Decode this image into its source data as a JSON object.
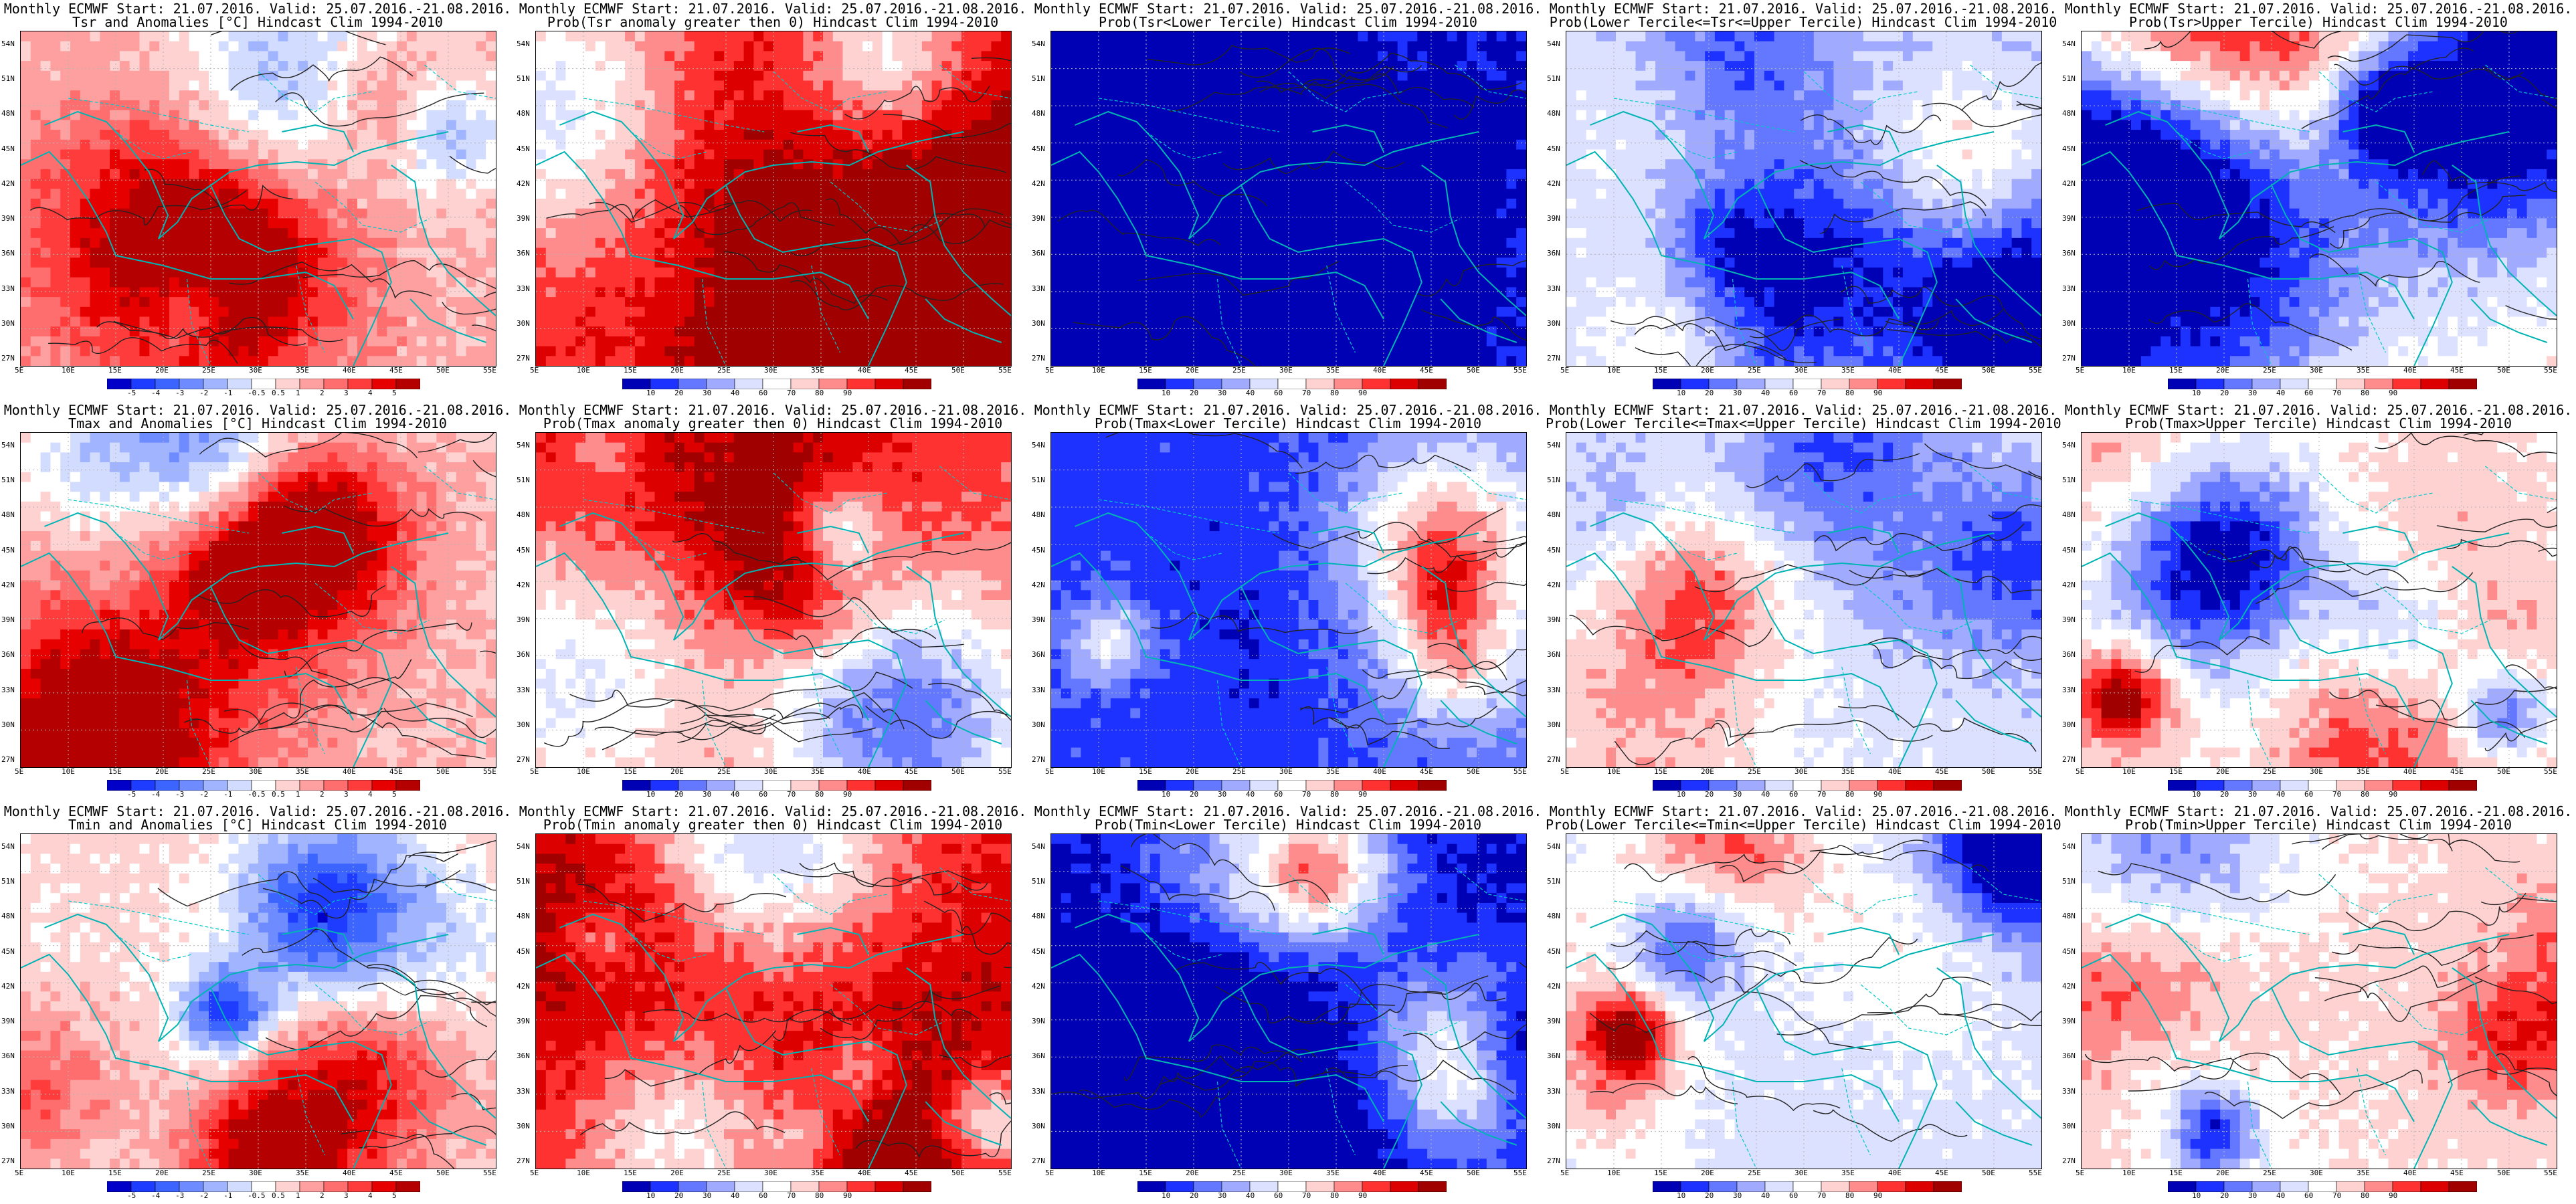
{
  "header_line": "Monthly ECMWF Start: 21.07.2016. Valid: 25.07.2016.-21.08.2016.",
  "lat_labels": [
    "54N",
    "51N",
    "48N",
    "45N",
    "42N",
    "39N",
    "36N",
    "33N",
    "30N",
    "27N"
  ],
  "lon_labels": [
    "5E",
    "10E",
    "15E",
    "20E",
    "25E",
    "30E",
    "35E",
    "40E",
    "45E",
    "50E",
    "55E"
  ],
  "colorbars": {
    "anomaly": {
      "labels": [
        "-5",
        "-4",
        "-3",
        "-2",
        "-1",
        "-0.5",
        "0.5",
        "1",
        "2",
        "3",
        "4",
        "5"
      ],
      "colors": [
        "#0000c8",
        "#1e3cff",
        "#3c64ff",
        "#6e8cff",
        "#a0b4ff",
        "#d2dcff",
        "#ffffff",
        "#ffd2d2",
        "#ffa0a0",
        "#ff6e6e",
        "#ff3c3c",
        "#e60000",
        "#b40000"
      ]
    },
    "probability": {
      "labels": [
        "10",
        "20",
        "30",
        "40",
        "60",
        "70",
        "80",
        "90"
      ],
      "colors": [
        "#0000b4",
        "#1e32ff",
        "#6478ff",
        "#a0aaff",
        "#dce1ff",
        "#ffffff",
        "#ffd2d2",
        "#ff8c8c",
        "#ff3232",
        "#dc0000",
        "#a00000"
      ]
    }
  },
  "panels": [
    {
      "title": "Tsr and Anomalies [°C] Hindcast Clim 1994-2010",
      "kind": "anomaly",
      "base": 0.25,
      "seed": 11
    },
    {
      "title": "Prob(Tsr anomaly greater then 0) Hindcast Clim 1994-2010",
      "kind": "probability",
      "base": 0.65,
      "seed": 12
    },
    {
      "title": "Prob(Tsr<Lower Tercile) Hindcast Clim 1994-2010",
      "kind": "probability",
      "base": -0.85,
      "seed": 13
    },
    {
      "title": "Prob(Lower Tercile<=Tsr<=Upper Tercile) Hindcast Clim 1994-2010",
      "kind": "probability",
      "base": -0.25,
      "seed": 14
    },
    {
      "title": "Prob(Tsr>Upper Tercile) Hindcast Clim 1994-2010",
      "kind": "probability",
      "base": 0.1,
      "seed": 15
    },
    {
      "title": "Tmax and Anomalies [°C] Hindcast Clim 1994-2010",
      "kind": "anomaly",
      "base": 0.2,
      "seed": 21
    },
    {
      "title": "Prob(Tmax anomaly greater then 0) Hindcast Clim 1994-2010",
      "kind": "probability",
      "base": 0.55,
      "seed": 22
    },
    {
      "title": "Prob(Tmax<Lower Tercile) Hindcast Clim 1994-2010",
      "kind": "probability",
      "base": -0.75,
      "seed": 23
    },
    {
      "title": "Prob(Lower Tercile<=Tmax<=Upper Tercile) Hindcast Clim 1994-2010",
      "kind": "probability",
      "base": -0.2,
      "seed": 24
    },
    {
      "title": "Prob(Tmax>Upper Tercile) Hindcast Clim 1994-2010",
      "kind": "probability",
      "base": 0.1,
      "seed": 25
    },
    {
      "title": "Tmin and Anomalies [°C] Hindcast Clim 1994-2010",
      "kind": "anomaly",
      "base": 0.15,
      "seed": 31
    },
    {
      "title": "Prob(Tmin anomaly greater then 0) Hindcast Clim 1994-2010",
      "kind": "probability",
      "base": 0.75,
      "seed": 32
    },
    {
      "title": "Prob(Tmin<Lower Tercile) Hindcast Clim 1994-2010",
      "kind": "probability",
      "base": -0.9,
      "seed": 33
    },
    {
      "title": "Prob(Lower Tercile<=Tmin<=Upper Tercile) Hindcast Clim 1994-2010",
      "kind": "probability",
      "base": -0.2,
      "seed": 34
    },
    {
      "title": "Prob(Tmin>Upper Tercile) Hindcast Clim 1994-2010",
      "kind": "probability",
      "base": 0.15,
      "seed": 35
    }
  ]
}
